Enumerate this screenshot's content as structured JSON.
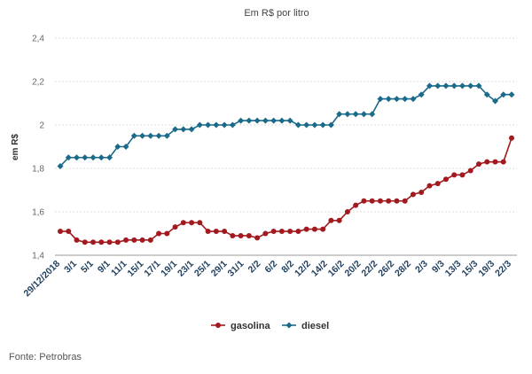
{
  "chart_data": {
    "type": "line",
    "title": "Em R$ por litro",
    "ylabel": "em R$",
    "ylim": [
      1.4,
      2.4
    ],
    "yticks": [
      "1,4",
      "1,6",
      "1,8",
      "2",
      "2,2",
      "2,4"
    ],
    "ytick_values": [
      1.4,
      1.6,
      1.8,
      2.0,
      2.2,
      2.4
    ],
    "grid": true,
    "legend_placement": "bottom-center",
    "x_tick_labels": [
      "29/12/2018",
      "3/1",
      "5/1",
      "9/1",
      "11/1",
      "15/1",
      "17/1",
      "19/1",
      "23/1",
      "25/1",
      "29/1",
      "31/1",
      "2/2",
      "6/2",
      "8/2",
      "12/2",
      "14/2",
      "16/2",
      "20/2",
      "22/2",
      "26/2",
      "28/2",
      "2/3",
      "9/3",
      "13/3",
      "15/3",
      "19/3",
      "22/3"
    ],
    "series": [
      {
        "name": "gasolina",
        "color": "#a31a1e",
        "values": [
          1.51,
          1.51,
          1.47,
          1.46,
          1.46,
          1.46,
          1.46,
          1.46,
          1.47,
          1.47,
          1.47,
          1.47,
          1.5,
          1.5,
          1.53,
          1.55,
          1.55,
          1.55,
          1.51,
          1.51,
          1.51,
          1.49,
          1.49,
          1.49,
          1.48,
          1.5,
          1.51,
          1.51,
          1.51,
          1.51,
          1.52,
          1.52,
          1.52,
          1.56,
          1.56,
          1.6,
          1.63,
          1.65,
          1.65,
          1.65,
          1.65,
          1.65,
          1.65,
          1.68,
          1.69,
          1.72,
          1.73,
          1.75,
          1.77,
          1.77,
          1.79,
          1.82,
          1.83,
          1.83,
          1.83,
          1.94
        ]
      },
      {
        "name": "diesel",
        "color": "#1a6a8a",
        "values": [
          1.81,
          1.85,
          1.85,
          1.85,
          1.85,
          1.85,
          1.85,
          1.9,
          1.9,
          1.95,
          1.95,
          1.95,
          1.95,
          1.95,
          1.98,
          1.98,
          1.98,
          2.0,
          2.0,
          2.0,
          2.0,
          2.0,
          2.02,
          2.02,
          2.02,
          2.02,
          2.02,
          2.02,
          2.02,
          2.0,
          2.0,
          2.0,
          2.0,
          2.0,
          2.05,
          2.05,
          2.05,
          2.05,
          2.05,
          2.12,
          2.12,
          2.12,
          2.12,
          2.12,
          2.14,
          2.18,
          2.18,
          2.18,
          2.18,
          2.18,
          2.18,
          2.18,
          2.14,
          2.11,
          2.14,
          2.14
        ]
      }
    ]
  },
  "source": "Fonte: Petrobras"
}
